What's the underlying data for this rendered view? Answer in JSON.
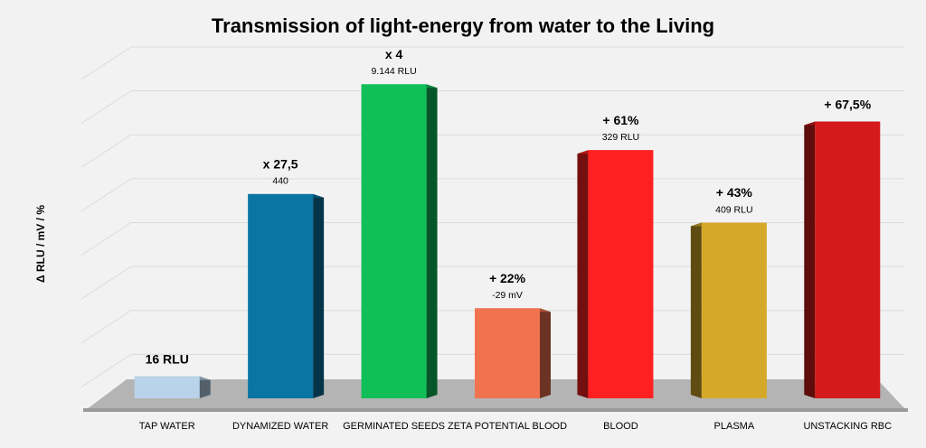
{
  "chart_data": {
    "type": "bar3d",
    "title": "Transmission of light-energy from water to the Living",
    "y_label": "Δ RLU / mV / %",
    "categories": [
      "TAP WATER",
      "DYNAMIZED WATER",
      "GERMINATED SEEDS",
      "ZETA POTENTIAL BLOOD",
      "BLOOD",
      "PLASMA",
      "UNSTACKING RBC"
    ],
    "values": [
      0.5,
      4.65,
      7.15,
      2.05,
      5.65,
      4.0,
      6.3
    ],
    "labels": [
      "16 RLU",
      "x 27,5",
      "x 4",
      "+ 22%",
      "+ 61%",
      "+ 43%",
      "+ 67,5%"
    ],
    "sublabels": [
      null,
      "440",
      "9.144 RLU",
      "-29 mV",
      "329 RLU",
      "409 RLU",
      null
    ],
    "colors": [
      "#b9d4ea",
      "#0a74a3",
      "#10bf58",
      "#f0724f",
      "#ff2121",
      "#d6a82a",
      "#d41a1a"
    ],
    "ylim": [
      0,
      8
    ],
    "yticks": [
      1,
      2,
      3,
      4,
      5,
      6,
      7,
      8
    ],
    "grid": true
  }
}
